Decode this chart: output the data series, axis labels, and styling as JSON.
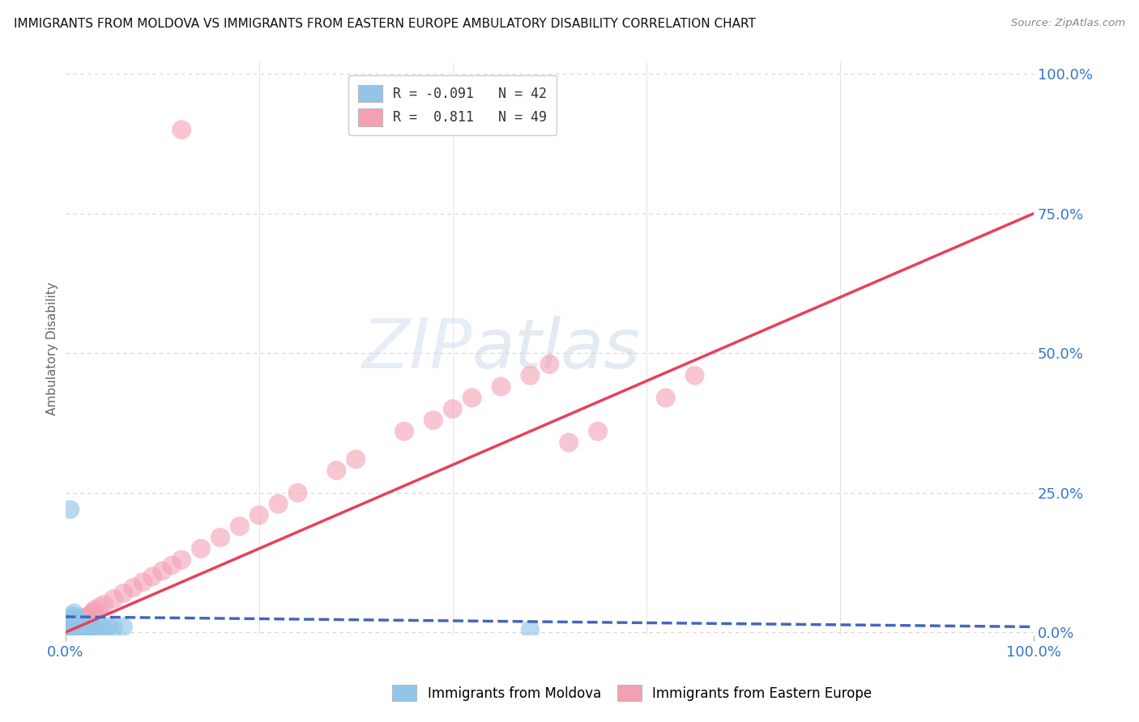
{
  "title": "IMMIGRANTS FROM MOLDOVA VS IMMIGRANTS FROM EASTERN EUROPE AMBULATORY DISABILITY CORRELATION CHART",
  "source": "Source: ZipAtlas.com",
  "ylabel": "Ambulatory Disability",
  "xlim": [
    0,
    1.0
  ],
  "ylim": [
    -0.005,
    1.02
  ],
  "ytick_labels": [
    "0.0%",
    "25.0%",
    "50.0%",
    "75.0%",
    "100.0%"
  ],
  "ytick_values": [
    0.0,
    0.25,
    0.5,
    0.75,
    1.0
  ],
  "xtick_labels": [
    "0.0%",
    "100.0%"
  ],
  "xtick_values": [
    0.0,
    1.0
  ],
  "legend_R1": "R = -0.091",
  "legend_N1": "N = 42",
  "legend_R2": "R =  0.811",
  "legend_N2": "N = 49",
  "color_moldova": "#92C5E8",
  "color_eastern": "#F4A0B4",
  "color_moldova_line": "#4466BB",
  "color_eastern_line": "#E8405A",
  "watermark_zip": "ZIP",
  "watermark_atlas": "atlas",
  "background_color": "#FFFFFF",
  "grid_color": "#BBBBBB",
  "moldova_x": [
    0.003,
    0.004,
    0.005,
    0.006,
    0.006,
    0.007,
    0.007,
    0.008,
    0.008,
    0.009,
    0.009,
    0.01,
    0.01,
    0.01,
    0.01,
    0.011,
    0.011,
    0.012,
    0.012,
    0.013,
    0.013,
    0.014,
    0.014,
    0.015,
    0.015,
    0.016,
    0.017,
    0.018,
    0.019,
    0.02,
    0.021,
    0.022,
    0.025,
    0.028,
    0.03,
    0.035,
    0.04,
    0.045,
    0.05,
    0.06,
    0.48,
    0.005
  ],
  "moldova_y": [
    0.005,
    0.008,
    0.01,
    0.012,
    0.02,
    0.015,
    0.025,
    0.018,
    0.03,
    0.022,
    0.035,
    0.01,
    0.015,
    0.02,
    0.025,
    0.01,
    0.02,
    0.008,
    0.018,
    0.012,
    0.022,
    0.01,
    0.015,
    0.008,
    0.018,
    0.01,
    0.012,
    0.015,
    0.01,
    0.008,
    0.01,
    0.012,
    0.01,
    0.01,
    0.008,
    0.01,
    0.008,
    0.01,
    0.008,
    0.01,
    0.005,
    0.22
  ],
  "eastern_x": [
    0.003,
    0.004,
    0.005,
    0.006,
    0.007,
    0.008,
    0.009,
    0.01,
    0.011,
    0.012,
    0.013,
    0.015,
    0.016,
    0.018,
    0.02,
    0.022,
    0.025,
    0.028,
    0.03,
    0.035,
    0.04,
    0.05,
    0.06,
    0.07,
    0.08,
    0.09,
    0.1,
    0.11,
    0.12,
    0.14,
    0.16,
    0.18,
    0.2,
    0.22,
    0.24,
    0.28,
    0.3,
    0.35,
    0.38,
    0.4,
    0.42,
    0.45,
    0.48,
    0.5,
    0.52,
    0.55,
    0.62,
    0.65,
    0.12
  ],
  "eastern_y": [
    0.005,
    0.008,
    0.01,
    0.012,
    0.015,
    0.018,
    0.02,
    0.01,
    0.015,
    0.012,
    0.018,
    0.015,
    0.02,
    0.025,
    0.022,
    0.028,
    0.03,
    0.035,
    0.04,
    0.045,
    0.05,
    0.06,
    0.07,
    0.08,
    0.09,
    0.1,
    0.11,
    0.12,
    0.13,
    0.15,
    0.17,
    0.19,
    0.21,
    0.23,
    0.25,
    0.29,
    0.31,
    0.36,
    0.38,
    0.4,
    0.42,
    0.44,
    0.46,
    0.48,
    0.34,
    0.36,
    0.42,
    0.46,
    0.9
  ],
  "regression_moldova": [
    -0.02,
    0.035
  ],
  "regression_eastern": [
    0.0,
    0.75
  ]
}
